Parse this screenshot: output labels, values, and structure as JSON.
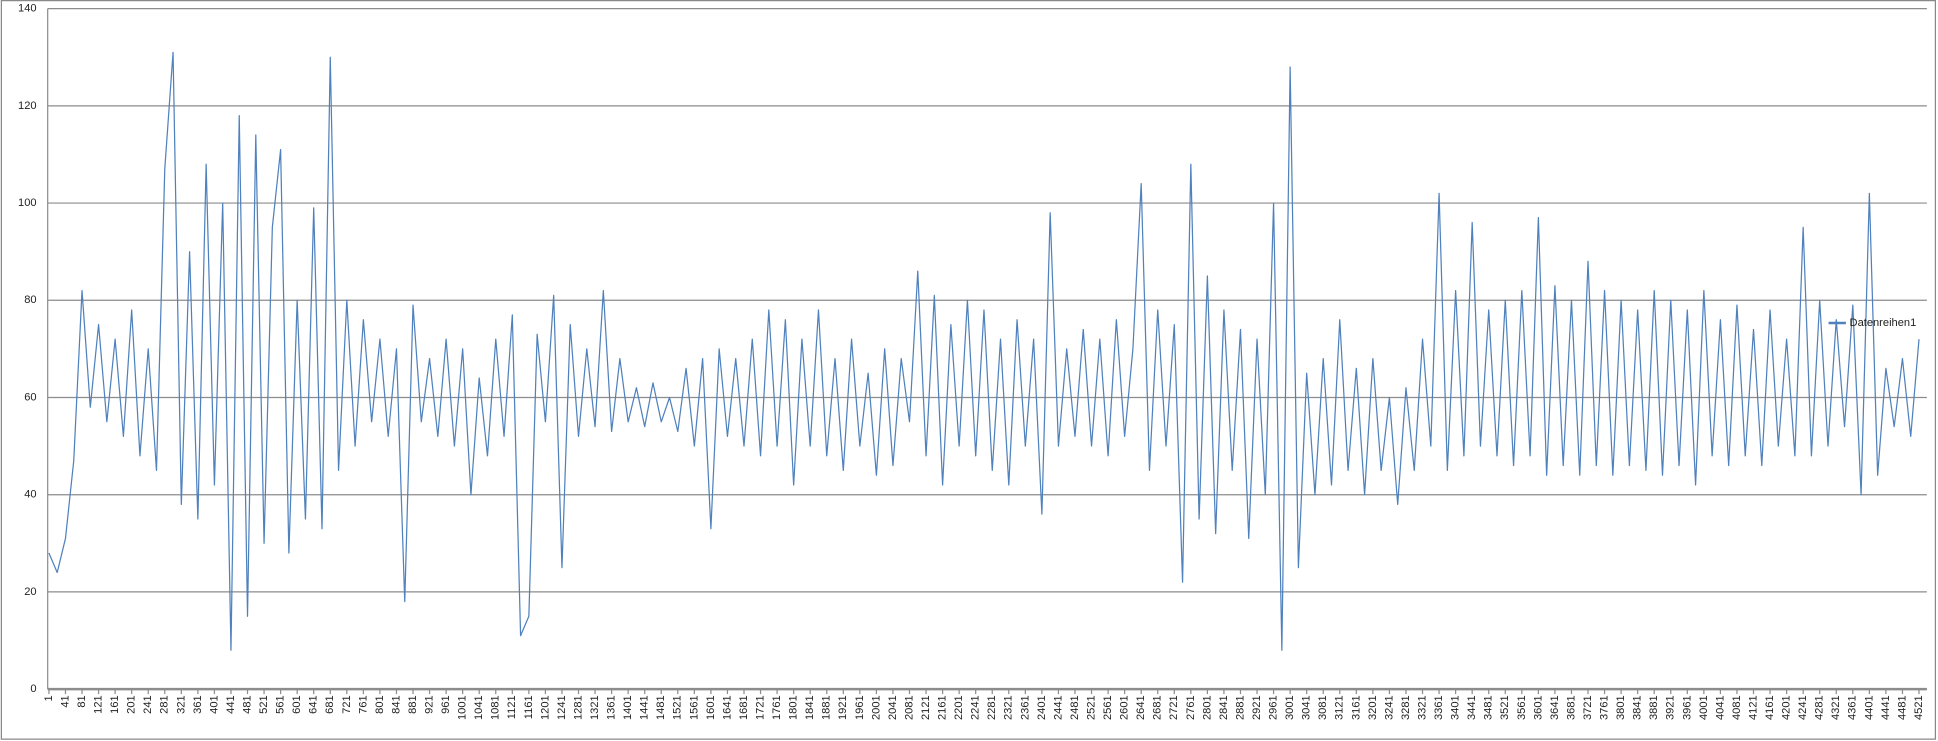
{
  "chart_data": {
    "type": "line",
    "x": [
      1,
      21,
      41,
      61,
      81,
      101,
      121,
      141,
      161,
      181,
      201,
      221,
      241,
      261,
      281,
      301,
      321,
      341,
      361,
      381,
      401,
      421,
      441,
      461,
      481,
      501,
      521,
      541,
      561,
      581,
      601,
      621,
      641,
      661,
      681,
      701,
      721,
      741,
      761,
      781,
      801,
      821,
      841,
      861,
      881,
      901,
      921,
      941,
      961,
      981,
      1001,
      1021,
      1041,
      1061,
      1081,
      1101,
      1121,
      1141,
      1161,
      1181,
      1201,
      1221,
      1241,
      1261,
      1281,
      1301,
      1321,
      1341,
      1361,
      1381,
      1401,
      1421,
      1441,
      1461,
      1481,
      1501,
      1521,
      1541,
      1561,
      1581,
      1601,
      1621,
      1641,
      1661,
      1681,
      1701,
      1721,
      1741,
      1761,
      1781,
      1801,
      1821,
      1841,
      1861,
      1881,
      1901,
      1921,
      1941,
      1961,
      1981,
      2001,
      2021,
      2041,
      2061,
      2081,
      2101,
      2121,
      2141,
      2161,
      2181,
      2201,
      2221,
      2241,
      2261,
      2281,
      2301,
      2321,
      2341,
      2361,
      2381,
      2401,
      2421,
      2441,
      2461,
      2481,
      2501,
      2521,
      2541,
      2561,
      2581,
      2601,
      2621,
      2641,
      2661,
      2681,
      2701,
      2721,
      2741,
      2761,
      2781,
      2801,
      2821,
      2841,
      2861,
      2881,
      2901,
      2921,
      2941,
      2961,
      2981,
      3001,
      3021,
      3041,
      3061,
      3081,
      3101,
      3121,
      3141,
      3161,
      3181,
      3201,
      3221,
      3241,
      3261,
      3281,
      3301,
      3321,
      3341,
      3361,
      3381,
      3401,
      3421,
      3441,
      3461,
      3481,
      3501,
      3521,
      3541,
      3561,
      3581,
      3601,
      3621,
      3641,
      3661,
      3681,
      3701,
      3721,
      3741,
      3761,
      3781,
      3801,
      3821,
      3841,
      3861,
      3881,
      3901,
      3921,
      3941,
      3961,
      3981,
      4001,
      4021,
      4041,
      4061,
      4081,
      4101,
      4121,
      4141,
      4161,
      4181,
      4201,
      4221,
      4241,
      4261,
      4281,
      4301,
      4321,
      4341,
      4361,
      4381,
      4401,
      4421,
      4441,
      4461,
      4481,
      4501,
      4521
    ],
    "series": [
      {
        "name": "Datenreihen1",
        "color": "#4f81bd",
        "values": [
          28,
          24,
          31,
          47,
          82,
          58,
          75,
          55,
          72,
          52,
          78,
          48,
          70,
          45,
          107,
          131,
          38,
          90,
          35,
          108,
          42,
          100,
          8,
          118,
          15,
          114,
          30,
          95,
          111,
          28,
          80,
          35,
          99,
          33,
          130,
          45,
          80,
          50,
          76,
          55,
          72,
          52,
          70,
          18,
          79,
          55,
          68,
          52,
          72,
          50,
          70,
          40,
          64,
          48,
          72,
          52,
          77,
          11,
          15,
          73,
          55,
          81,
          25,
          75,
          52,
          70,
          54,
          82,
          53,
          68,
          55,
          62,
          54,
          63,
          55,
          60,
          53,
          66,
          50,
          68,
          33,
          70,
          52,
          68,
          50,
          72,
          48,
          78,
          50,
          76,
          42,
          72,
          50,
          78,
          48,
          68,
          45,
          72,
          50,
          65,
          44,
          70,
          46,
          68,
          55,
          86,
          48,
          81,
          42,
          75,
          50,
          80,
          48,
          78,
          45,
          72,
          42,
          76,
          50,
          72,
          36,
          98,
          50,
          70,
          52,
          74,
          50,
          72,
          48,
          76,
          52,
          70,
          104,
          45,
          78,
          50,
          75,
          22,
          108,
          35,
          85,
          32,
          78,
          45,
          74,
          31,
          72,
          40,
          100,
          8,
          128,
          25,
          65,
          40,
          68,
          42,
          76,
          45,
          66,
          40,
          68,
          45,
          60,
          38,
          62,
          45,
          72,
          50,
          102,
          45,
          82,
          48,
          96,
          50,
          78,
          48,
          80,
          46,
          82,
          48,
          97,
          44,
          83,
          46,
          80,
          44,
          88,
          46,
          82,
          44,
          80,
          46,
          78,
          45,
          82,
          44,
          80,
          46,
          78,
          42,
          82,
          48,
          76,
          46,
          79,
          48,
          74,
          46,
          78,
          50,
          72,
          48,
          95,
          48,
          80,
          50,
          76,
          54,
          79,
          40,
          102,
          44,
          66,
          54,
          68,
          52,
          72
        ]
      }
    ],
    "xlim": [
      1,
      4540
    ],
    "xticks": [
      1,
      41,
      81,
      121,
      161,
      201,
      241,
      281,
      321,
      361,
      401,
      441,
      481,
      521,
      561,
      601,
      641,
      681,
      721,
      761,
      801,
      841,
      881,
      921,
      961,
      1001,
      1041,
      1081,
      1121,
      1161,
      1201,
      1241,
      1281,
      1321,
      1361,
      1401,
      1441,
      1481,
      1521,
      1561,
      1601,
      1641,
      1681,
      1721,
      1761,
      1801,
      1841,
      1881,
      1921,
      1961,
      2001,
      2041,
      2081,
      2121,
      2161,
      2201,
      2241,
      2281,
      2321,
      2361,
      2401,
      2441,
      2481,
      2521,
      2561,
      2601,
      2641,
      2681,
      2721,
      2761,
      2801,
      2841,
      2881,
      2921,
      2961,
      3001,
      3041,
      3081,
      3121,
      3161,
      3201,
      3241,
      3281,
      3321,
      3361,
      3401,
      3441,
      3481,
      3521,
      3561,
      3601,
      3641,
      3681,
      3721,
      3761,
      3801,
      3841,
      3881,
      3921,
      3961,
      4001,
      4041,
      4081,
      4121,
      4161,
      4201,
      4241,
      4281,
      4321,
      4361,
      4401,
      4441,
      4481,
      4521
    ],
    "ylim": [
      0,
      140
    ],
    "yticks": [
      0,
      20,
      40,
      60,
      80,
      100,
      120,
      140
    ],
    "grid": true,
    "legend": "right"
  }
}
